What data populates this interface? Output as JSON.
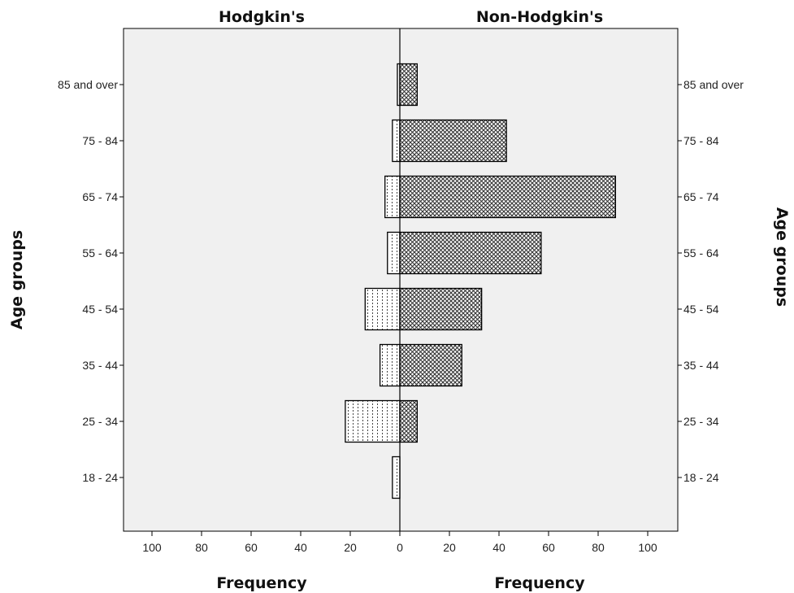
{
  "chart_data": {
    "type": "bar",
    "orientation": "horizontal",
    "layout": "population-pyramid",
    "categories": [
      "18 - 24",
      "25 - 34",
      "35 - 44",
      "45 - 54",
      "55 - 64",
      "65 - 74",
      "75 - 84",
      "85 and over"
    ],
    "series": [
      {
        "name": "Hodgkin's",
        "side": "left",
        "values": [
          3,
          22,
          8,
          14,
          5,
          6,
          3,
          1
        ],
        "pattern": "dotted"
      },
      {
        "name": "Non-Hodgkin's",
        "side": "right",
        "values": [
          0,
          7,
          25,
          33,
          57,
          87,
          43,
          7
        ],
        "pattern": "crosshatch"
      }
    ],
    "xlabel": "Frequency",
    "ylabel": "Age groups",
    "xlim": [
      0,
      110
    ],
    "xticks": [
      0,
      20,
      40,
      60,
      80,
      100
    ],
    "grid": false,
    "legend": "none",
    "colors": {
      "background": "#f0f0f0",
      "bar_fill": "#ffffff",
      "bar_pattern": "#333333",
      "axis": "#000000"
    }
  }
}
